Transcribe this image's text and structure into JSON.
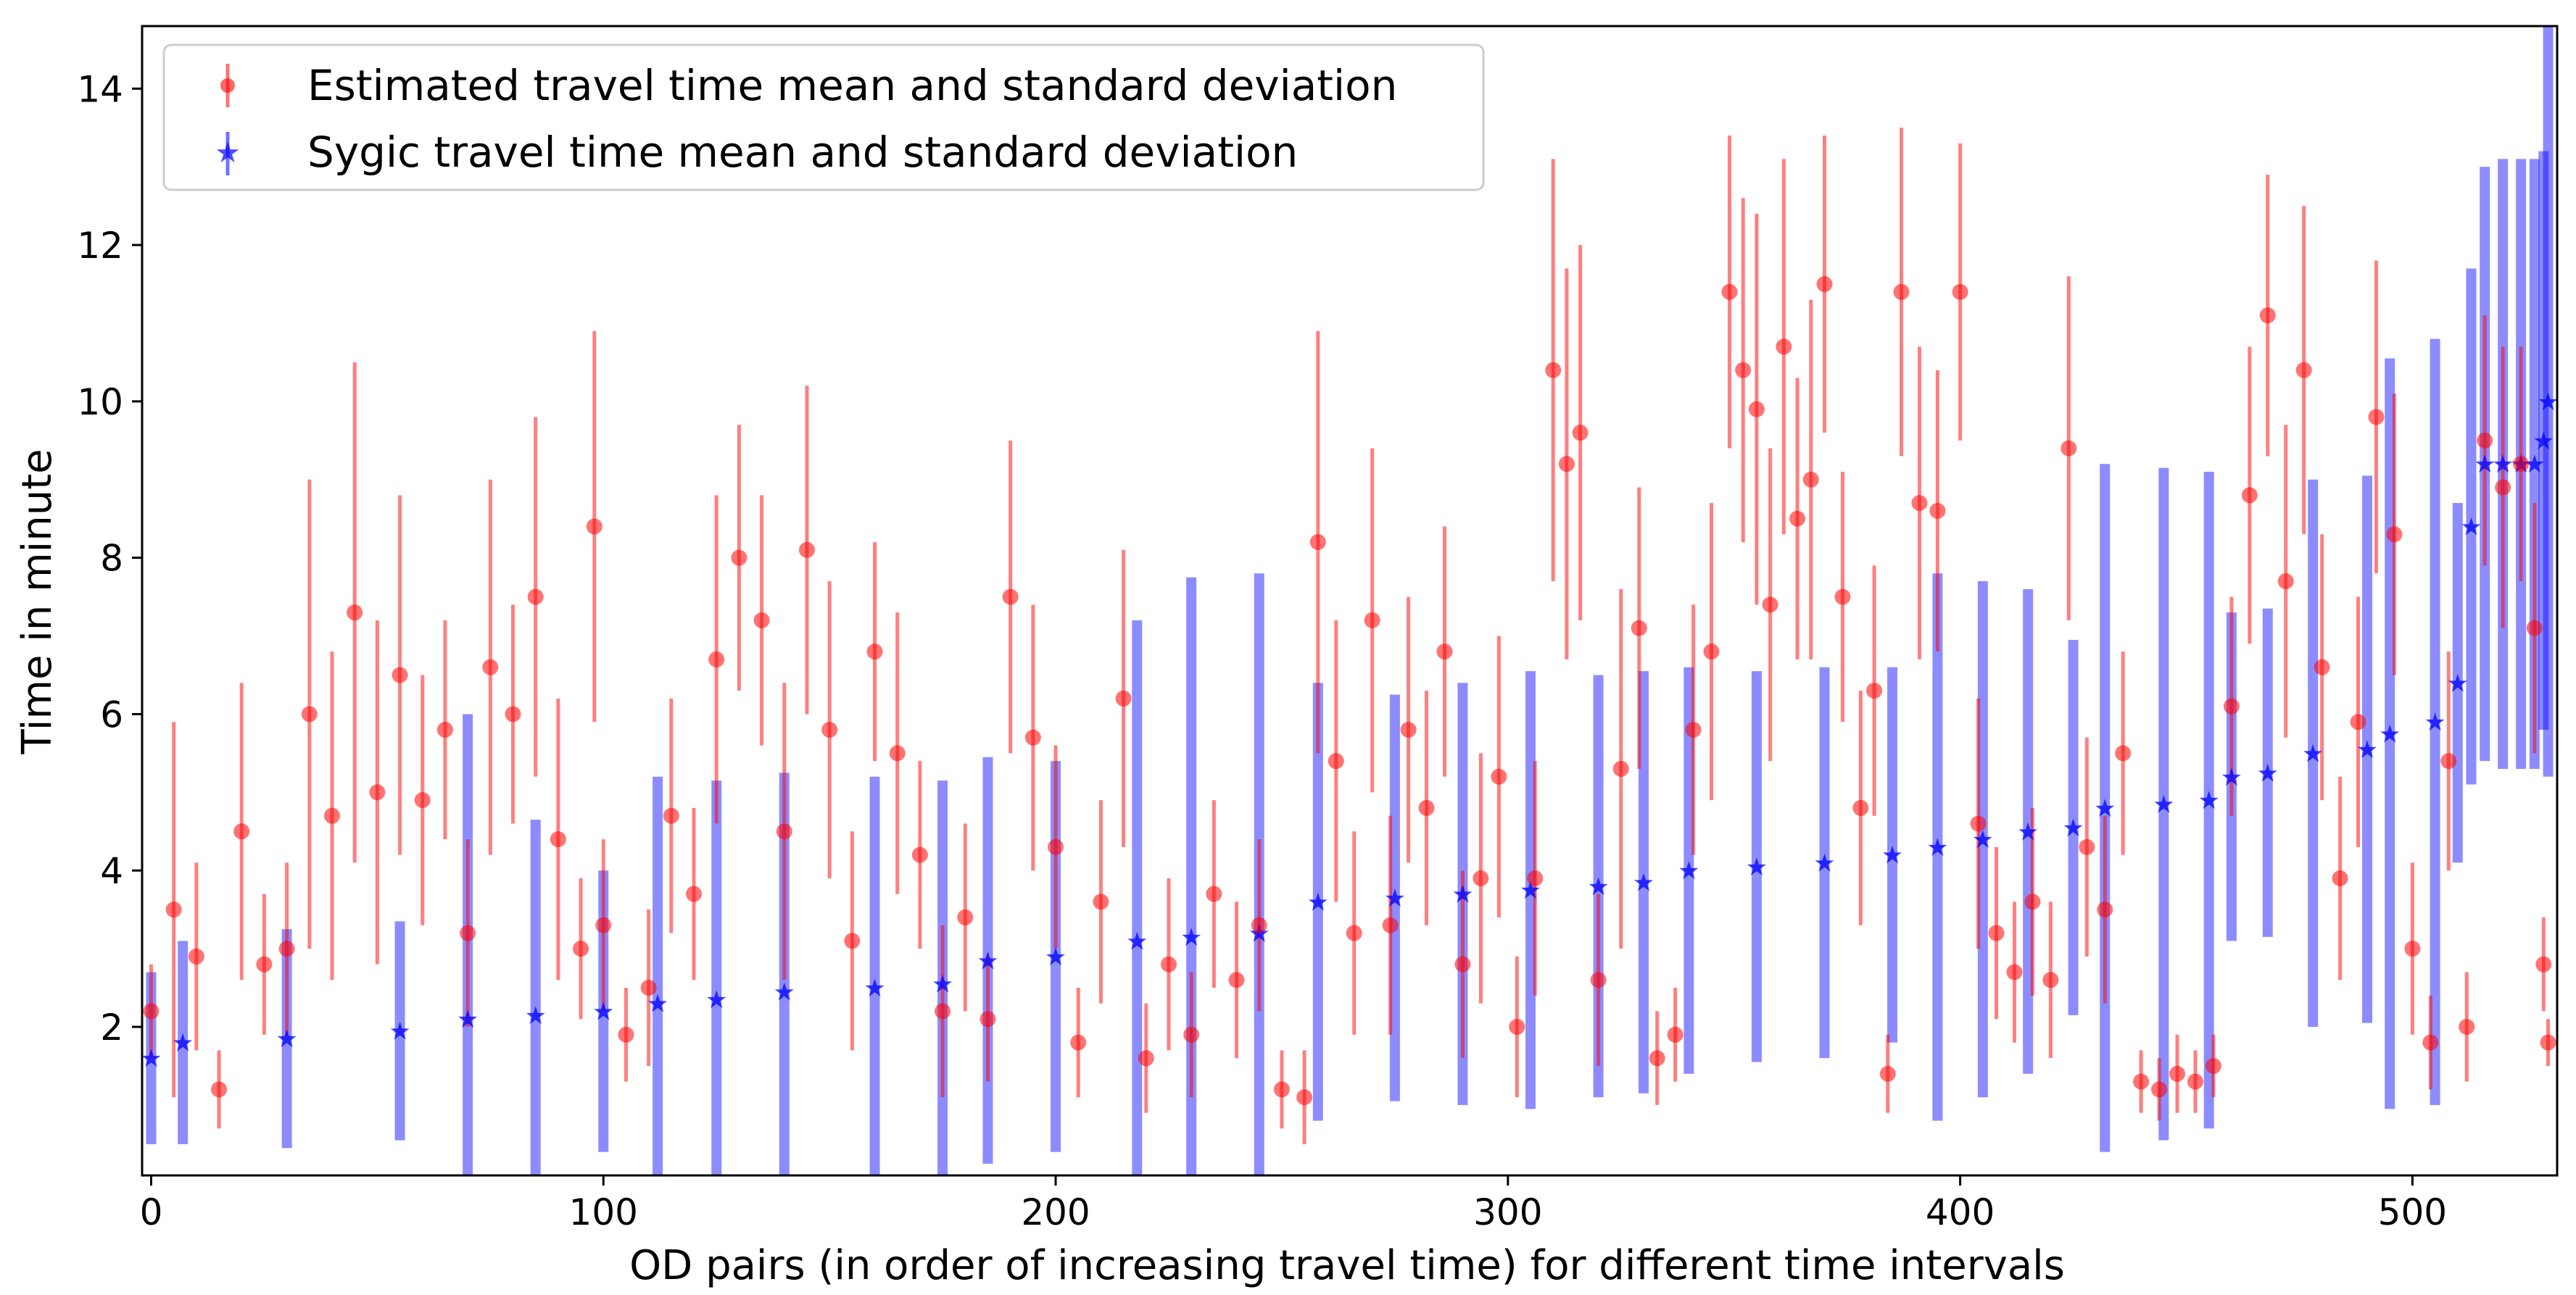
{
  "chart_data": {
    "type": "scatter",
    "xlabel": "OD pairs (in order of increasing travel time) for different time intervals",
    "ylabel": "Time in minute",
    "xlim": [
      -2,
      532
    ],
    "ylim": [
      0.1,
      14.8
    ],
    "x_ticks": [
      0,
      100,
      200,
      300,
      400,
      500
    ],
    "y_ticks": [
      2,
      4,
      6,
      8,
      10,
      12,
      14
    ],
    "grid": false,
    "legend_position": "top-left",
    "series": [
      {
        "name": "Estimated travel time mean and standard deviation",
        "color": "#ff0000",
        "marker": "circle",
        "points": [
          [
            0,
            2.2,
            0.6
          ],
          [
            5,
            3.5,
            2.4
          ],
          [
            10,
            2.9,
            1.2
          ],
          [
            15,
            1.2,
            0.5
          ],
          [
            20,
            4.5,
            1.9
          ],
          [
            25,
            2.8,
            0.9
          ],
          [
            30,
            3.0,
            1.1
          ],
          [
            35,
            6.0,
            3.0
          ],
          [
            40,
            4.7,
            2.1
          ],
          [
            45,
            7.3,
            3.2
          ],
          [
            50,
            5.0,
            2.2
          ],
          [
            55,
            6.5,
            2.3
          ],
          [
            60,
            4.9,
            1.6
          ],
          [
            65,
            5.8,
            1.4
          ],
          [
            70,
            3.2,
            1.2
          ],
          [
            75,
            6.6,
            2.4
          ],
          [
            80,
            6.0,
            1.4
          ],
          [
            85,
            7.5,
            2.3
          ],
          [
            90,
            4.4,
            1.8
          ],
          [
            95,
            3.0,
            0.9
          ],
          [
            98,
            8.4,
            2.5
          ],
          [
            100,
            3.3,
            1.1
          ],
          [
            105,
            1.9,
            0.6
          ],
          [
            110,
            2.5,
            1.0
          ],
          [
            115,
            4.7,
            1.5
          ],
          [
            120,
            3.7,
            1.1
          ],
          [
            125,
            6.7,
            2.1
          ],
          [
            130,
            8.0,
            1.7
          ],
          [
            135,
            7.2,
            1.6
          ],
          [
            140,
            4.5,
            1.9
          ],
          [
            145,
            8.1,
            2.1
          ],
          [
            150,
            5.8,
            1.9
          ],
          [
            155,
            3.1,
            1.4
          ],
          [
            160,
            6.8,
            1.4
          ],
          [
            165,
            5.5,
            1.8
          ],
          [
            170,
            4.2,
            1.2
          ],
          [
            175,
            2.2,
            1.1
          ],
          [
            180,
            3.4,
            1.2
          ],
          [
            185,
            2.1,
            0.8
          ],
          [
            190,
            7.5,
            2.0
          ],
          [
            195,
            5.7,
            1.7
          ],
          [
            200,
            4.3,
            1.3
          ],
          [
            205,
            1.8,
            0.7
          ],
          [
            210,
            3.6,
            1.3
          ],
          [
            215,
            6.2,
            1.9
          ],
          [
            220,
            1.6,
            0.7
          ],
          [
            225,
            2.8,
            1.1
          ],
          [
            230,
            1.9,
            0.8
          ],
          [
            235,
            3.7,
            1.2
          ],
          [
            240,
            2.6,
            1.0
          ],
          [
            245,
            3.3,
            1.1
          ],
          [
            250,
            1.2,
            0.5
          ],
          [
            255,
            1.1,
            0.6
          ],
          [
            258,
            8.2,
            2.7
          ],
          [
            262,
            5.4,
            1.8
          ],
          [
            266,
            3.2,
            1.3
          ],
          [
            270,
            7.2,
            2.2
          ],
          [
            274,
            3.3,
            1.4
          ],
          [
            278,
            5.8,
            1.7
          ],
          [
            282,
            4.8,
            1.5
          ],
          [
            286,
            6.8,
            1.6
          ],
          [
            290,
            2.8,
            1.2
          ],
          [
            294,
            3.9,
            1.6
          ],
          [
            298,
            5.2,
            1.8
          ],
          [
            302,
            2.0,
            0.9
          ],
          [
            306,
            3.9,
            1.5
          ],
          [
            310,
            10.4,
            2.7
          ],
          [
            313,
            9.2,
            2.5
          ],
          [
            316,
            9.6,
            2.4
          ],
          [
            320,
            2.6,
            1.1
          ],
          [
            325,
            5.3,
            2.3
          ],
          [
            329,
            7.1,
            1.8
          ],
          [
            333,
            1.6,
            0.6
          ],
          [
            337,
            1.9,
            0.6
          ],
          [
            341,
            5.8,
            1.6
          ],
          [
            345,
            6.8,
            1.9
          ],
          [
            349,
            11.4,
            2.0
          ],
          [
            352,
            10.4,
            2.2
          ],
          [
            355,
            9.9,
            2.5
          ],
          [
            358,
            7.4,
            2.0
          ],
          [
            361,
            10.7,
            2.4
          ],
          [
            364,
            8.5,
            1.8
          ],
          [
            367,
            9.0,
            2.3
          ],
          [
            370,
            11.5,
            1.9
          ],
          [
            374,
            7.5,
            1.6
          ],
          [
            378,
            4.8,
            1.5
          ],
          [
            381,
            6.3,
            1.6
          ],
          [
            384,
            1.4,
            0.5
          ],
          [
            387,
            11.4,
            2.1
          ],
          [
            391,
            8.7,
            2.0
          ],
          [
            395,
            8.6,
            1.8
          ],
          [
            400,
            11.4,
            1.9
          ],
          [
            404,
            4.6,
            1.6
          ],
          [
            408,
            3.2,
            1.1
          ],
          [
            412,
            2.7,
            0.9
          ],
          [
            416,
            3.6,
            1.2
          ],
          [
            420,
            2.6,
            1.0
          ],
          [
            424,
            9.4,
            2.2
          ],
          [
            428,
            4.3,
            1.4
          ],
          [
            432,
            3.5,
            1.2
          ],
          [
            436,
            5.5,
            1.3
          ],
          [
            440,
            1.3,
            0.4
          ],
          [
            444,
            1.2,
            0.4
          ],
          [
            448,
            1.4,
            0.5
          ],
          [
            452,
            1.3,
            0.4
          ],
          [
            456,
            1.5,
            0.4
          ],
          [
            460,
            6.1,
            1.4
          ],
          [
            464,
            8.8,
            1.9
          ],
          [
            468,
            11.1,
            1.8
          ],
          [
            472,
            7.7,
            2.0
          ],
          [
            476,
            10.4,
            2.1
          ],
          [
            480,
            6.6,
            1.7
          ],
          [
            484,
            3.9,
            1.3
          ],
          [
            488,
            5.9,
            1.6
          ],
          [
            492,
            9.8,
            2.0
          ],
          [
            496,
            8.3,
            1.8
          ],
          [
            500,
            3.0,
            1.1
          ],
          [
            504,
            1.8,
            0.6
          ],
          [
            508,
            5.4,
            1.4
          ],
          [
            512,
            2.0,
            0.7
          ],
          [
            516,
            9.5,
            1.6
          ],
          [
            520,
            8.9,
            1.8
          ],
          [
            524,
            9.2,
            1.5
          ],
          [
            527,
            7.1,
            1.6
          ],
          [
            529,
            2.8,
            0.6
          ],
          [
            530,
            1.8,
            0.3
          ]
        ]
      },
      {
        "name": "Sygic travel time mean and standard deviation",
        "color": "#0000ff",
        "marker": "star",
        "points": [
          [
            0,
            1.6,
            1.1
          ],
          [
            7,
            1.8,
            1.3
          ],
          [
            30,
            1.85,
            1.4
          ],
          [
            55,
            1.95,
            1.4
          ],
          [
            70,
            2.1,
            3.9
          ],
          [
            85,
            2.15,
            2.5
          ],
          [
            100,
            2.2,
            1.8
          ],
          [
            112,
            2.3,
            2.9
          ],
          [
            125,
            2.35,
            2.8
          ],
          [
            140,
            2.45,
            2.8
          ],
          [
            160,
            2.5,
            2.7
          ],
          [
            175,
            2.55,
            2.6
          ],
          [
            185,
            2.85,
            2.6
          ],
          [
            200,
            2.9,
            2.5
          ],
          [
            218,
            3.1,
            4.1
          ],
          [
            230,
            3.15,
            4.6
          ],
          [
            245,
            3.2,
            4.6
          ],
          [
            258,
            3.6,
            2.8
          ],
          [
            275,
            3.65,
            2.6
          ],
          [
            290,
            3.7,
            2.7
          ],
          [
            305,
            3.75,
            2.8
          ],
          [
            320,
            3.8,
            2.7
          ],
          [
            330,
            3.85,
            2.7
          ],
          [
            340,
            4.0,
            2.6
          ],
          [
            355,
            4.05,
            2.5
          ],
          [
            370,
            4.1,
            2.5
          ],
          [
            385,
            4.2,
            2.4
          ],
          [
            395,
            4.3,
            3.5
          ],
          [
            405,
            4.4,
            3.3
          ],
          [
            415,
            4.5,
            3.1
          ],
          [
            425,
            4.55,
            2.4
          ],
          [
            432,
            4.8,
            4.4
          ],
          [
            445,
            4.85,
            4.3
          ],
          [
            455,
            4.9,
            4.2
          ],
          [
            460,
            5.2,
            2.1
          ],
          [
            468,
            5.25,
            2.1
          ],
          [
            478,
            5.5,
            3.5
          ],
          [
            490,
            5.55,
            3.5
          ],
          [
            495,
            5.75,
            4.8
          ],
          [
            505,
            5.9,
            4.9
          ],
          [
            510,
            6.4,
            2.3
          ],
          [
            513,
            8.4,
            3.3
          ],
          [
            516,
            9.2,
            3.8
          ],
          [
            520,
            9.2,
            3.9
          ],
          [
            524,
            9.2,
            3.9
          ],
          [
            527,
            9.2,
            3.9
          ],
          [
            529,
            9.5,
            3.7
          ],
          [
            530,
            10.0,
            4.8
          ]
        ]
      }
    ]
  }
}
